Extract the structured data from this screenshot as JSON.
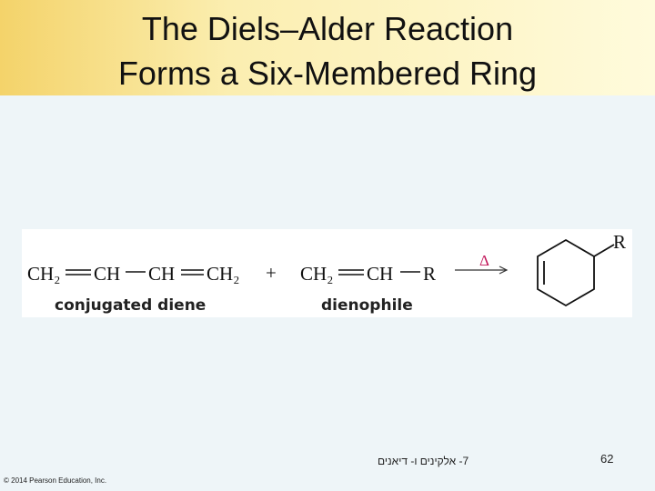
{
  "header": {
    "title_lines": [
      "The Diels–Alder Reaction",
      "Forms a Six-Membered Ring"
    ]
  },
  "reaction": {
    "diene": {
      "groups": [
        "CH₂",
        "CH",
        "CH",
        "CH₂"
      ],
      "label": "conjugated diene"
    },
    "plus": "+",
    "dienophile": {
      "groups": [
        "CH₂",
        "CH",
        "R"
      ],
      "label": "dienophile"
    },
    "condition": "Δ",
    "product_substituent": "R"
  },
  "footer": {
    "chapter": "7- אלקינים ו- דיאנים",
    "page_number": "62",
    "copyright": "© 2014 Pearson Education, Inc."
  }
}
